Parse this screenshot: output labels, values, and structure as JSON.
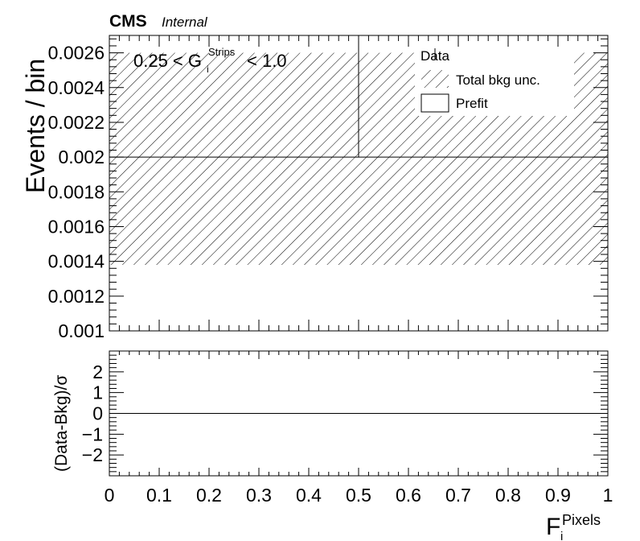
{
  "header": {
    "experiment": "CMS",
    "status": "Internal"
  },
  "cut_label": {
    "prefix": "0.25 < G",
    "sub": "i",
    "sup": "Strips",
    "suffix": "< 1.0"
  },
  "legend": {
    "data": "Data",
    "unc": "Total bkg unc.",
    "prefit": "Prefit"
  },
  "chart_data": [
    {
      "type": "bar",
      "panel": "main",
      "ylabel": "Events / bin",
      "ylim": [
        0.001,
        0.0027
      ],
      "yticks": [
        "0.001",
        "0.0012",
        "0.0014",
        "0.0016",
        "0.0018",
        "0.002",
        "0.0022",
        "0.0024",
        "0.0026"
      ],
      "xlim": [
        0,
        1
      ],
      "bins": [
        [
          0,
          0.5
        ],
        [
          0.5,
          1.0
        ]
      ],
      "prefit": [
        0.002,
        0.002
      ],
      "bkg_unc_band": [
        [
          0.00138,
          0.0026
        ],
        [
          0.00138,
          0.0026
        ]
      ],
      "data": [
        null,
        null
      ],
      "legend_position": "top-right"
    },
    {
      "type": "line",
      "panel": "ratio",
      "ylabel": "(Data-Bkg)/σ",
      "ylim": [
        -3,
        3
      ],
      "yticks": [
        "−2",
        "−1",
        "0",
        "1",
        "2"
      ],
      "xlabel_main": "F",
      "xlabel_sub": "i",
      "xlabel_sup": "Pixels",
      "xlim": [
        0,
        1
      ],
      "xticks": [
        "0",
        "0.1",
        "0.2",
        "0.3",
        "0.4",
        "0.5",
        "0.6",
        "0.7",
        "0.8",
        "0.9",
        "1"
      ],
      "reference_line": 0
    }
  ]
}
